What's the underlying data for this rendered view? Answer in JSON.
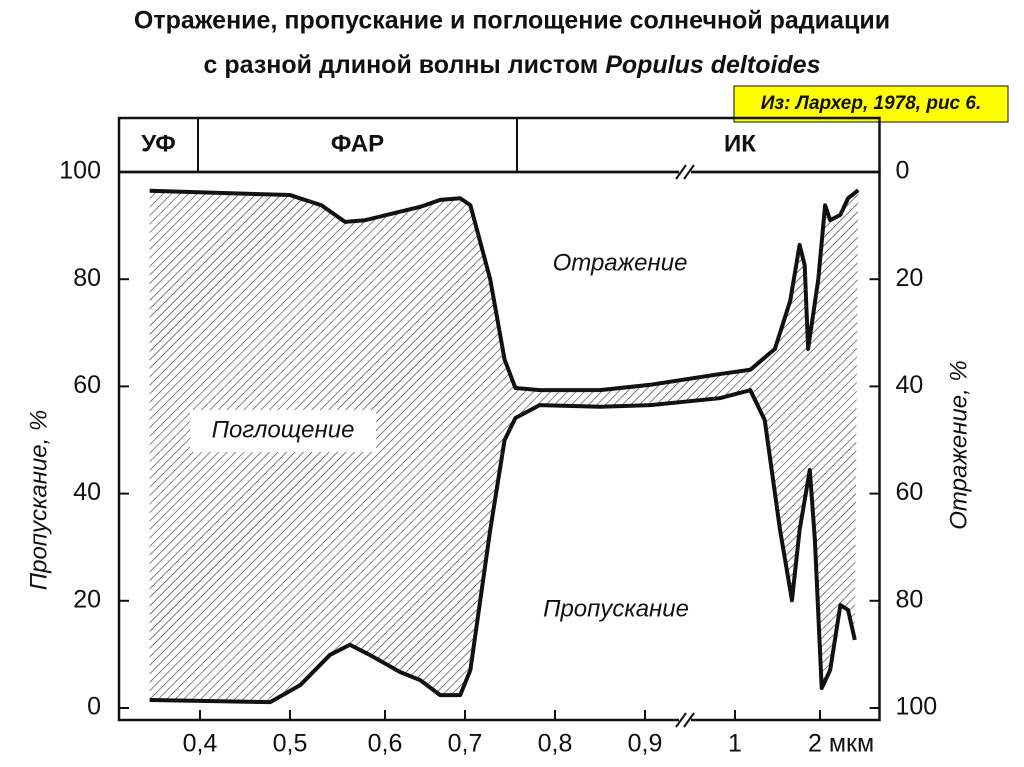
{
  "chart_data": {
    "type": "band",
    "title": {
      "line1": "Отражение, пропускание и поглощение солнечной радиации",
      "line2": "с разной длиной волны листом",
      "species": "Populus deltoides"
    },
    "source": "Из: Лархер, 1978, рис 6.",
    "regions": [
      "УФ",
      "ФАР",
      "ИК"
    ],
    "y_label": "Пропускание, %",
    "y2_label": "Отражение, %",
    "annotations": {
      "reflection": "Отражение",
      "absorption": "Поглощение",
      "transmission": "Пропускание"
    },
    "xlim": [
      0.31,
      2.7
    ],
    "xticks": [
      {
        "value": 0.4,
        "label": "0,4"
      },
      {
        "value": 0.5,
        "label": "0,5"
      },
      {
        "value": 0.6,
        "label": "0,6"
      },
      {
        "value": 0.7,
        "label": "0,7"
      },
      {
        "value": 0.8,
        "label": "0,8"
      },
      {
        "value": 0.9,
        "label": "0,9"
      },
      1,
      {
        "value": 2,
        "label": "2 мкм"
      }
    ],
    "ylim": [
      0,
      100
    ],
    "yticks": [
      0,
      20,
      40,
      60,
      80,
      100
    ],
    "y2lim": [
      100,
      0
    ],
    "y2ticks": [
      0,
      20,
      40,
      60,
      80,
      100
    ],
    "series": [
      {
        "name": "Отражение",
        "axis": "y2",
        "color": "#111111",
        "x": [
          0.344,
          0.5,
          0.533,
          0.558,
          0.579,
          0.644,
          0.669,
          0.694,
          0.706,
          0.728,
          0.744,
          0.756,
          0.783,
          0.85,
          0.906,
          0.983,
          1.18,
          1.47,
          1.65,
          1.76,
          1.82,
          1.86,
          1.98,
          2.06,
          2.12,
          2.24,
          2.33,
          2.45
        ],
        "values": [
          3.5,
          4.3,
          6.2,
          9.3,
          9,
          6.5,
          5.2,
          4.9,
          6.2,
          20,
          35,
          40.3,
          40.7,
          40.7,
          39.7,
          37.7,
          36.9,
          33,
          24,
          13.6,
          17.4,
          33,
          20,
          6.2,
          9,
          8,
          4.9,
          3.4
        ]
      },
      {
        "name": "Пропускание",
        "color": "#111111",
        "x": [
          0.344,
          0.478,
          0.511,
          0.542,
          0.563,
          0.584,
          0.619,
          0.644,
          0.669,
          0.694,
          0.706,
          0.728,
          0.744,
          0.756,
          0.783,
          0.85,
          0.906,
          0.983,
          1.18,
          1.35,
          1.53,
          1.67,
          1.76,
          1.88,
          1.94,
          2.02,
          2.12,
          2.24,
          2.33,
          2.41
        ],
        "values": [
          1.5,
          1.1,
          4.3,
          9.9,
          11.8,
          9.9,
          6.7,
          5.2,
          2.4,
          2.4,
          7.1,
          33.2,
          50,
          54.1,
          56.5,
          56.2,
          56.5,
          57.8,
          59.3,
          53.7,
          33.2,
          20.1,
          33.2,
          44.4,
          31.3,
          3.7,
          7.1,
          19.2,
          18.3,
          12.7
        ]
      }
    ]
  }
}
